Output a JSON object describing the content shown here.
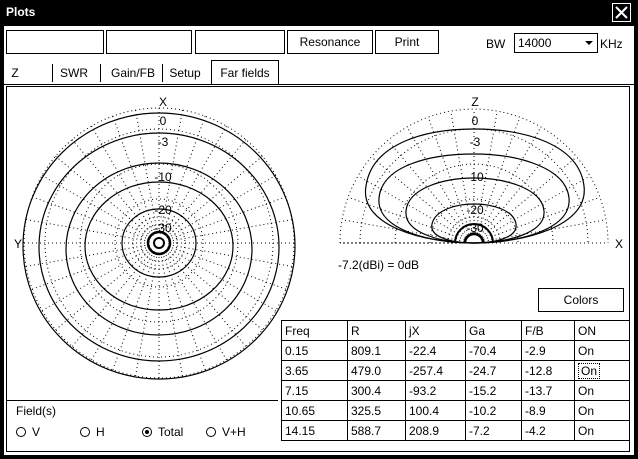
{
  "window": {
    "title": "Plots"
  },
  "toolbar": {
    "resonance_label": "Resonance",
    "print_label": "Print",
    "bw_label": "BW",
    "bw_value": "14000",
    "bw_unit": "KHz"
  },
  "tabs": [
    {
      "label": "Z"
    },
    {
      "label": "SWR"
    },
    {
      "label": "Gain/FB"
    },
    {
      "label": "Setup"
    },
    {
      "label": "Far fields",
      "active": true
    }
  ],
  "plots": {
    "left": {
      "axis_top": "X",
      "axis_left": "Y",
      "ring_labels": [
        "0",
        "-3",
        "-10",
        "-20",
        "-30"
      ]
    },
    "right": {
      "axis_top": "Z",
      "axis_right": "X",
      "ring_labels": [
        "0",
        "-3",
        "-10",
        "-20",
        "-30"
      ]
    },
    "db_note": "-7.2(dBi) = 0dB"
  },
  "colors_button": "Colors",
  "fields": {
    "label": "Field(s)",
    "options": [
      {
        "label": "V",
        "selected": false
      },
      {
        "label": "H",
        "selected": false
      },
      {
        "label": "Total",
        "selected": true
      },
      {
        "label": "V+H",
        "selected": false
      }
    ]
  },
  "table": {
    "headers": [
      "Freq",
      "R",
      "jX",
      "Ga",
      "F/B",
      "ON"
    ],
    "rows": [
      [
        "0.15",
        "809.1",
        "-22.4",
        "-70.4",
        "-2.9",
        "On"
      ],
      [
        "3.65",
        "479.0",
        "-257.4",
        "-24.7",
        "-12.8",
        "On"
      ],
      [
        "7.15",
        "300.4",
        "-93.2",
        "-15.2",
        "-13.7",
        "On"
      ],
      [
        "10.65",
        "325.5",
        "100.4",
        "-10.2",
        "-8.9",
        "On"
      ],
      [
        "14.15",
        "588.7",
        "208.9",
        "-7.2",
        "-4.2",
        "On"
      ]
    ]
  }
}
